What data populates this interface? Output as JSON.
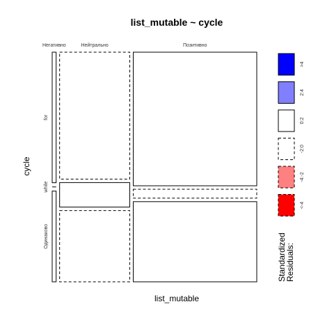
{
  "chart_data": {
    "type": "mosaic",
    "title": "list_mutable ~ cycle",
    "xlabel": "list_mutable",
    "ylabel": "cycle",
    "x_categories": [
      "Негативно",
      "Нейтрально",
      "Позитивно"
    ],
    "y_categories": [
      "for",
      "while",
      "Одинаково"
    ],
    "column_proportions": [
      0.02,
      0.355,
      0.625
    ],
    "cells": [
      {
        "x": "Негативно",
        "y": "for",
        "proportion": 0.59,
        "residual_level": "0:2"
      },
      {
        "x": "Негативно",
        "y": "while",
        "proportion": 0.0,
        "residual_level": "<-4"
      },
      {
        "x": "Негативно",
        "y": "Одинаково",
        "proportion": 0.41,
        "residual_level": "0:2"
      },
      {
        "x": "Нейтрально",
        "y": "for",
        "proportion": 0.57,
        "residual_level": "-2:0"
      },
      {
        "x": "Нейтрально",
        "y": "while",
        "proportion": 0.11,
        "residual_level": "0:2"
      },
      {
        "x": "Нейтрально",
        "y": "Одинаково",
        "proportion": 0.32,
        "residual_level": "-2:0"
      },
      {
        "x": "Позитивно",
        "y": "for",
        "proportion": 0.6,
        "residual_level": "0:2"
      },
      {
        "x": "Позитивно",
        "y": "while",
        "proportion": 0.04,
        "residual_level": "-2:0"
      },
      {
        "x": "Позитивно",
        "y": "Одинаково",
        "proportion": 0.36,
        "residual_level": "0:2"
      }
    ],
    "legend": {
      "title_line1": "Standardized",
      "title_line2": "Residuals:",
      "placement": "right",
      "levels": [
        {
          "label": ">4",
          "fill": "#0000ff",
          "dashed": false
        },
        {
          "label": "2:4",
          "fill": "#8080ff",
          "dashed": false
        },
        {
          "label": "0:2",
          "fill": "#ffffff",
          "dashed": false
        },
        {
          "label": "-2:0",
          "fill": "#ffffff",
          "dashed": true
        },
        {
          "label": "-4:-2",
          "fill": "#ff8080",
          "dashed": true
        },
        {
          "label": "<-4",
          "fill": "#ff0000",
          "dashed": true
        }
      ]
    }
  }
}
